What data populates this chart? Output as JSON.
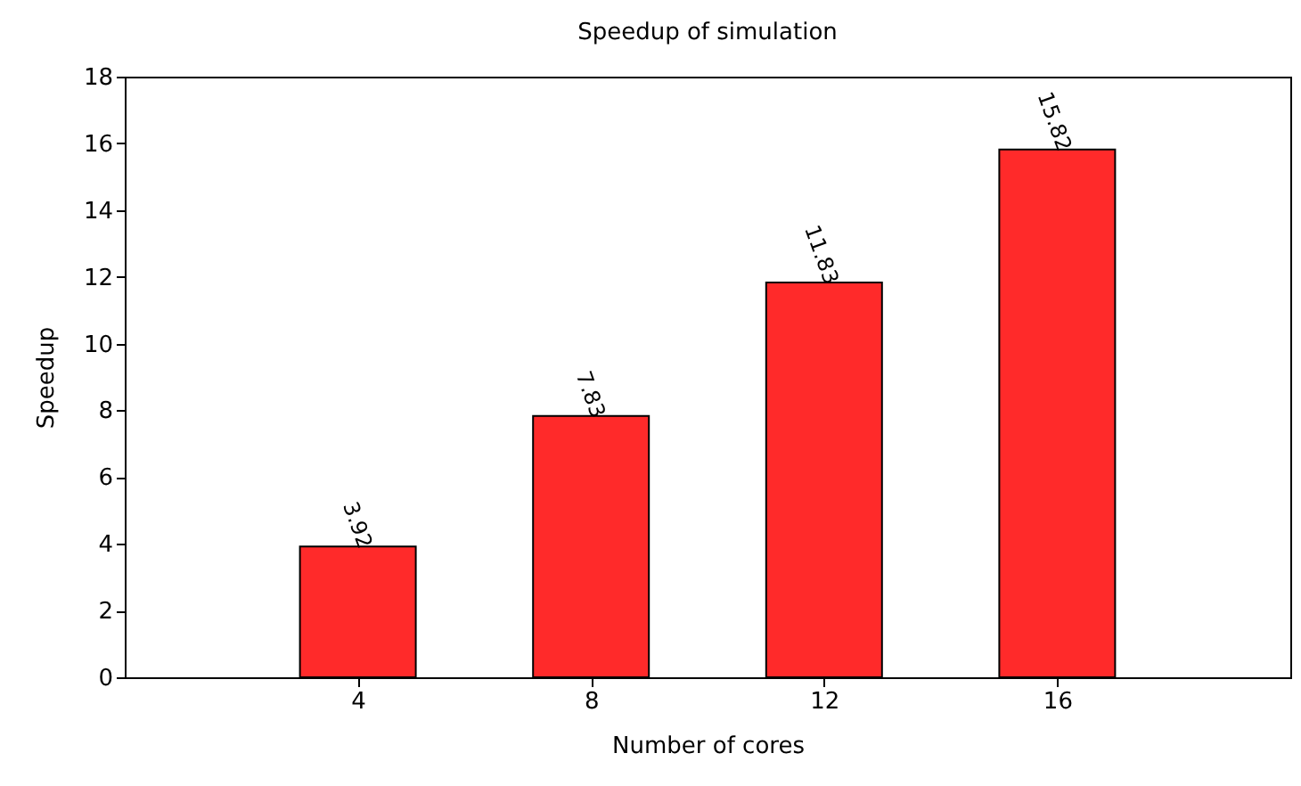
{
  "chart_data": {
    "type": "bar",
    "title": "Speedup of simulation",
    "xlabel": "Number of cores",
    "ylabel": "Speedup",
    "x": [
      4,
      8,
      12,
      16
    ],
    "values": [
      3.92,
      7.83,
      11.83,
      15.82
    ],
    "color": "#ff2a2a",
    "xlim": [
      0,
      20
    ],
    "xticks": [
      4,
      8,
      12,
      16
    ],
    "ylim": [
      0,
      18
    ],
    "yticks": [
      0,
      2,
      4,
      6,
      8,
      10,
      12,
      14,
      16,
      18
    ],
    "data_labels": true,
    "grid": false
  }
}
